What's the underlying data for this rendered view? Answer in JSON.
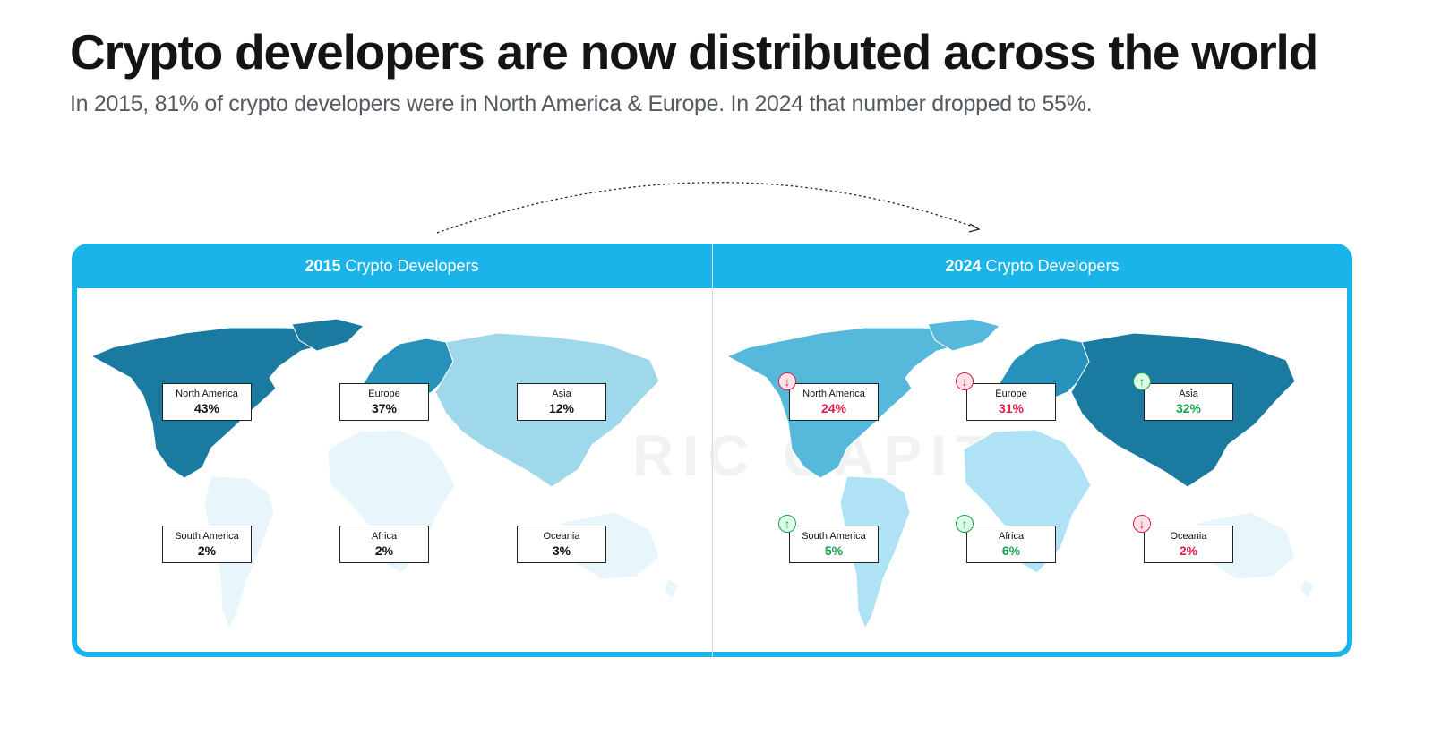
{
  "title": "Crypto developers are now distributed across the world",
  "subtitle": "In 2015, 81% of crypto developers were in North America & Europe. In 2024 that number dropped to 55%.",
  "watermark": "RIC   CAPITA",
  "panels": [
    {
      "year": "2015",
      "label": "Crypto Developers",
      "regions": [
        {
          "name": "North America",
          "value": "43%",
          "fill": "#1a7aa0"
        },
        {
          "name": "Europe",
          "value": "37%",
          "fill": "#2692bb"
        },
        {
          "name": "Asia",
          "value": "12%",
          "fill": "#9fd8ea"
        },
        {
          "name": "South America",
          "value": "2%",
          "fill": "#e8f6fc"
        },
        {
          "name": "Africa",
          "value": "2%",
          "fill": "#e8f6fc"
        },
        {
          "name": "Oceania",
          "value": "3%",
          "fill": "#e8f6fc"
        }
      ]
    },
    {
      "year": "2024",
      "label": "Crypto Developers",
      "regions": [
        {
          "name": "North America",
          "value": "24%",
          "trend": "down",
          "fill": "#56b8da"
        },
        {
          "name": "Europe",
          "value": "31%",
          "trend": "down",
          "fill": "#2692bb"
        },
        {
          "name": "Asia",
          "value": "32%",
          "trend": "up",
          "fill": "#1a7aa0"
        },
        {
          "name": "South America",
          "value": "5%",
          "trend": "up",
          "fill": "#aee2f4"
        },
        {
          "name": "Africa",
          "value": "6%",
          "trend": "up",
          "fill": "#aee2f4"
        },
        {
          "name": "Oceania",
          "value": "2%",
          "trend": "down",
          "fill": "#e8f6fc"
        }
      ]
    }
  ],
  "colors": {
    "frame": "#1ab4ea",
    "down": "#e11d48",
    "up": "#16a34a"
  },
  "icons": {
    "down": "arrow-down-icon",
    "up": "arrow-up-icon"
  }
}
